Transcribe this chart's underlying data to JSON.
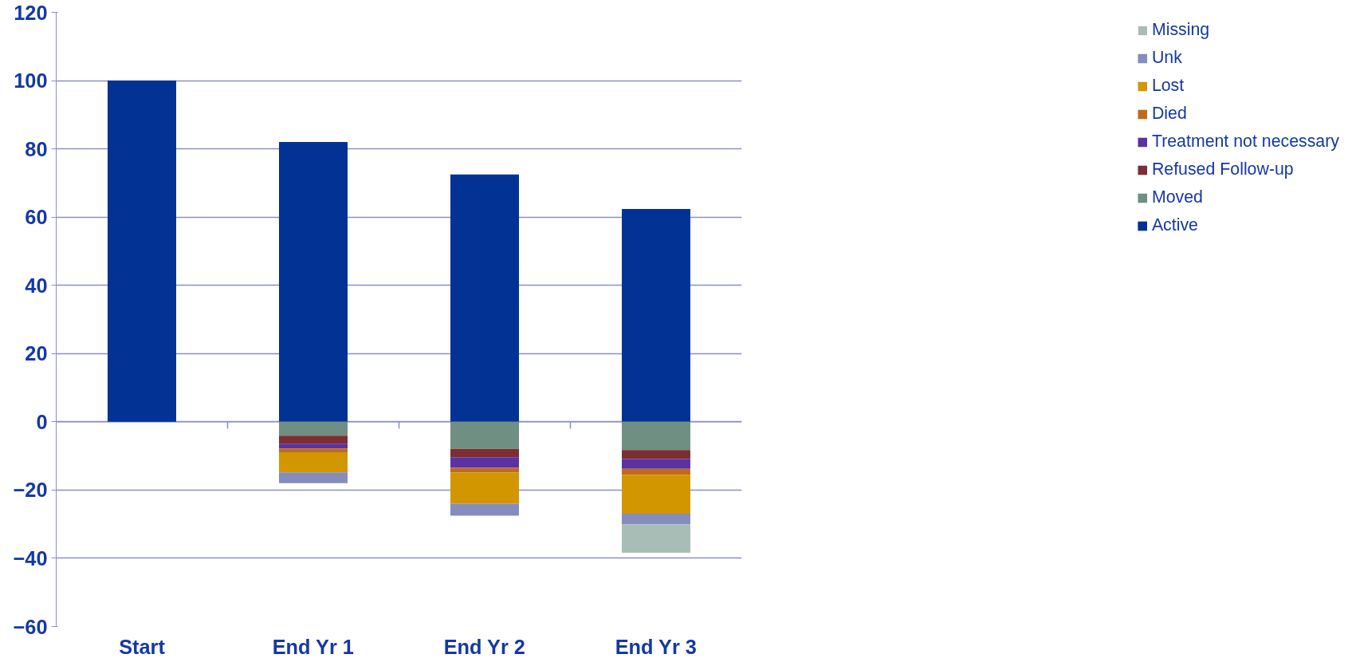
{
  "chart_data": {
    "type": "bar",
    "stacked": true,
    "categories": [
      "Start",
      "End Yr 1",
      "End Yr 2",
      "End Yr 3"
    ],
    "series": [
      {
        "name": "Active",
        "color": "#023294",
        "values": [
          100,
          82,
          72.5,
          62.4
        ]
      },
      {
        "name": "Moved",
        "color": "#6e8f82",
        "values": [
          null,
          -4.1,
          -7.9,
          -8.3
        ]
      },
      {
        "name": "Refused Follow-up",
        "color": "#7e2d33",
        "values": [
          null,
          -2.3,
          -2.5,
          -2.6
        ]
      },
      {
        "name": "Treatment not necessary",
        "color": "#5a32a3",
        "values": [
          null,
          -1.4,
          -3.1,
          -2.9
        ]
      },
      {
        "name": "Died",
        "color": "#c06a1e",
        "values": [
          null,
          -1.1,
          -1.4,
          -1.7
        ]
      },
      {
        "name": "Lost",
        "color": "#d19600",
        "values": [
          null,
          -5.9,
          -9.1,
          -11.4
        ]
      },
      {
        "name": "Unk",
        "color": "#858cbe",
        "values": [
          null,
          -3.2,
          -3.5,
          -3.1
        ]
      },
      {
        "name": "Missing",
        "color": "#a8bdb5",
        "values": [
          null,
          null,
          null,
          -8.4
        ]
      }
    ],
    "ylim": [
      -60,
      120
    ],
    "yticks": [
      -60,
      -40,
      -20,
      0,
      20,
      40,
      60,
      80,
      100,
      120
    ],
    "grid": "y",
    "legend": "right"
  }
}
